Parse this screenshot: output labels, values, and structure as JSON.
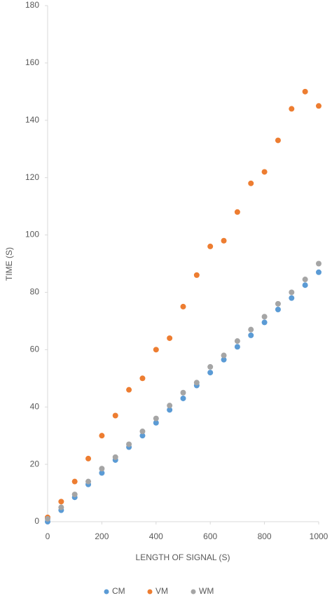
{
  "chart_data": {
    "type": "scatter",
    "x_label": "LENGTH OF SIGNAL (S)",
    "y_label": "TIME (S)",
    "x": [
      0,
      50,
      100,
      150,
      200,
      250,
      300,
      350,
      400,
      450,
      500,
      550,
      600,
      650,
      700,
      750,
      800,
      850,
      900,
      950,
      1000
    ],
    "series": [
      {
        "name": "CM",
        "color": "#5b9bd5",
        "values": [
          0,
          4,
          8.5,
          13,
          17,
          21.5,
          26,
          30,
          34.5,
          39,
          43,
          47.5,
          52,
          56.5,
          61,
          65,
          69.5,
          74,
          78,
          82.5,
          87
        ]
      },
      {
        "name": "VM",
        "color": "#ed7d31",
        "values": [
          1.5,
          7,
          14,
          22,
          30,
          37,
          46,
          50,
          60,
          64,
          75,
          86,
          96,
          98,
          108,
          118,
          122,
          133,
          144,
          150,
          145
        ]
      },
      {
        "name": "WM",
        "color": "#a5a5a5",
        "values": [
          1,
          5,
          9.5,
          14,
          18.5,
          22.5,
          27,
          31.5,
          36,
          40.5,
          45,
          48.5,
          54,
          58,
          63,
          67,
          71.5,
          76,
          80,
          84.5,
          90
        ]
      }
    ],
    "xlim": [
      0,
      1000
    ],
    "xticks": [
      0,
      200,
      400,
      600,
      800,
      1000
    ],
    "ylim": [
      0,
      180
    ],
    "yticks": [
      0,
      20,
      40,
      60,
      80,
      100,
      120,
      140,
      160,
      180
    ],
    "legend": "bottom"
  }
}
